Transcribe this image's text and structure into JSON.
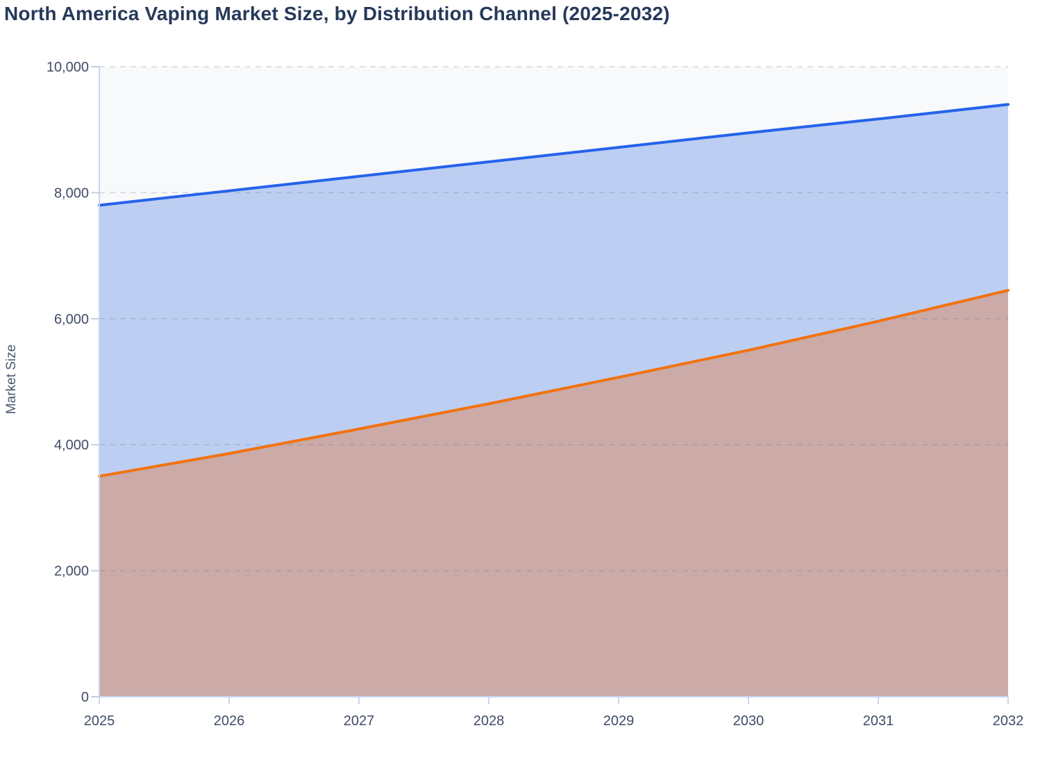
{
  "title": "North America Vaping Market Size, by Distribution Channel (2025-2032)",
  "chart_data": {
    "type": "area",
    "title": "North America Vaping Market Size, by Distribution Channel (2025-2032)",
    "xlabel": "",
    "ylabel": "Market Size",
    "x": [
      2025,
      2026,
      2027,
      2028,
      2029,
      2030,
      2031,
      2032
    ],
    "x_tick_labels": [
      "2025",
      "2026",
      "2027",
      "2028",
      "2029",
      "2030",
      "2031",
      "2032"
    ],
    "series": [
      {
        "line_color": "#2563eb",
        "fill_color": "#bdcef3",
        "values": [
          7800,
          8030,
          8260,
          8490,
          8720,
          8950,
          9170,
          9400
        ]
      },
      {
        "line_color": "#f2720f",
        "fill_color": "#cbaaa7",
        "values": [
          3500,
          3860,
          4250,
          4650,
          5070,
          5500,
          5960,
          6450
        ]
      }
    ],
    "ylim": [
      0,
      10000
    ],
    "ytick_values": [
      0,
      2000,
      4000,
      6000,
      8000,
      10000
    ],
    "ytick_labels": [
      "0",
      "2,000",
      "4,000",
      "6,000",
      "8,000",
      "10,000"
    ],
    "grid": true,
    "grid_style": "dashed",
    "legend_position": "none"
  },
  "colors": {
    "title_text": "#26395a",
    "axis_label_text": "#3f4c66",
    "y_axis_title_text": "#4b5870",
    "plot_background": "#f8f9fb",
    "gridline": "#6c768a",
    "axis_line": "#c8d5ef",
    "tick_mark": "#c4cdda",
    "page_background": "#ffffff"
  }
}
